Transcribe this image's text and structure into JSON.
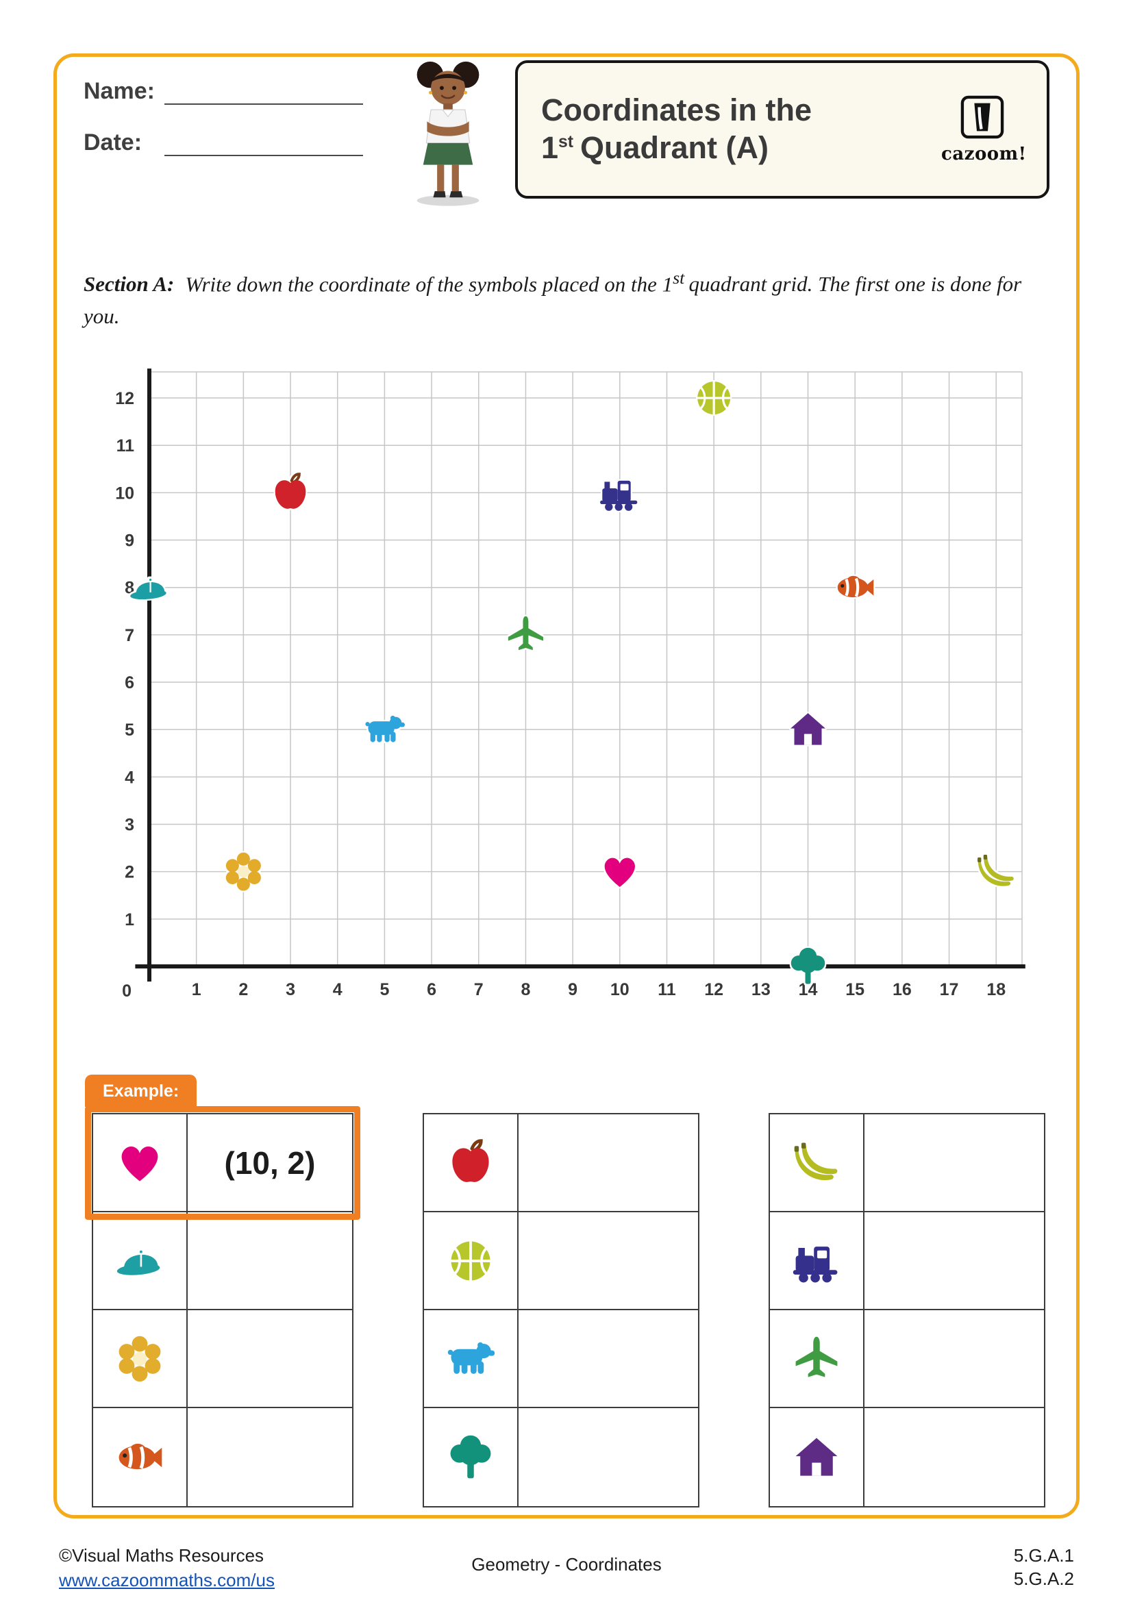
{
  "header": {
    "name_label": "Name:",
    "date_label": "Date:",
    "title_line1": "Coordinates in the",
    "title_line2_num": "1",
    "title_line2_sup": "st",
    "title_line2_rest": "Quadrant (A)",
    "logo_text": "cazoom!"
  },
  "section_a": {
    "label": "Section A:",
    "text_pre": "Write down the coordinate of the symbols placed on the 1",
    "text_sup": "st",
    "text_post": "quadrant grid. The first one is done for you."
  },
  "chart_data": {
    "type": "scatter",
    "title": "",
    "xlabel": "",
    "ylabel": "",
    "x_range": [
      0,
      18
    ],
    "y_range": [
      0,
      12
    ],
    "x_ticks": [
      0,
      1,
      2,
      3,
      4,
      5,
      6,
      7,
      8,
      9,
      10,
      11,
      12,
      13,
      14,
      15,
      16,
      17,
      18
    ],
    "y_ticks": [
      0,
      1,
      2,
      3,
      4,
      5,
      6,
      7,
      8,
      9,
      10,
      11,
      12
    ],
    "grid": true,
    "points": [
      {
        "symbol": "cap",
        "x": 0,
        "y": 8
      },
      {
        "symbol": "flower",
        "x": 2,
        "y": 2
      },
      {
        "symbol": "apple",
        "x": 3,
        "y": 10
      },
      {
        "symbol": "bear",
        "x": 5,
        "y": 5
      },
      {
        "symbol": "plane",
        "x": 8,
        "y": 7
      },
      {
        "symbol": "train",
        "x": 10,
        "y": 10
      },
      {
        "symbol": "heart",
        "x": 10,
        "y": 2
      },
      {
        "symbol": "basketball",
        "x": 12,
        "y": 12
      },
      {
        "symbol": "house",
        "x": 14,
        "y": 5
      },
      {
        "symbol": "tree",
        "x": 14,
        "y": 0
      },
      {
        "symbol": "fish",
        "x": 15,
        "y": 8
      },
      {
        "symbol": "banana",
        "x": 18,
        "y": 2
      }
    ]
  },
  "answer_tables": {
    "example_label": "Example:",
    "tables": [
      {
        "rows": [
          {
            "symbol": "heart",
            "answer": "(10, 2)",
            "is_example": true
          },
          {
            "symbol": "cap",
            "answer": ""
          },
          {
            "symbol": "flower",
            "answer": ""
          },
          {
            "symbol": "fish",
            "answer": ""
          }
        ]
      },
      {
        "rows": [
          {
            "symbol": "apple",
            "answer": ""
          },
          {
            "symbol": "basketball",
            "answer": ""
          },
          {
            "symbol": "bear",
            "answer": ""
          },
          {
            "symbol": "tree",
            "answer": ""
          }
        ]
      },
      {
        "rows": [
          {
            "symbol": "banana",
            "answer": ""
          },
          {
            "symbol": "train",
            "answer": ""
          },
          {
            "symbol": "plane",
            "answer": ""
          },
          {
            "symbol": "house",
            "answer": ""
          }
        ]
      }
    ]
  },
  "footer": {
    "copyright": "©Visual Maths Resources",
    "url": "www.cazoommaths.com/us",
    "center_text": "Geometry - Coordinates",
    "standard_1": "5.G.A.1",
    "standard_2": "5.G.A.2"
  },
  "colors": {
    "page_border": "#F3AA1C",
    "example_orange": "#F07E22",
    "link_blue": "#1353B8",
    "heart": "#E2007E",
    "apple": "#D0202A",
    "basketball": "#B7C62B",
    "train": "#34308B",
    "cap": "#1E9FA4",
    "fish": "#D4571E",
    "plane": "#3F9C42",
    "bear": "#2EA4DD",
    "house": "#5E2B85",
    "flower": "#E2AC2C",
    "banana": "#B4BC20",
    "tree": "#12917B"
  }
}
